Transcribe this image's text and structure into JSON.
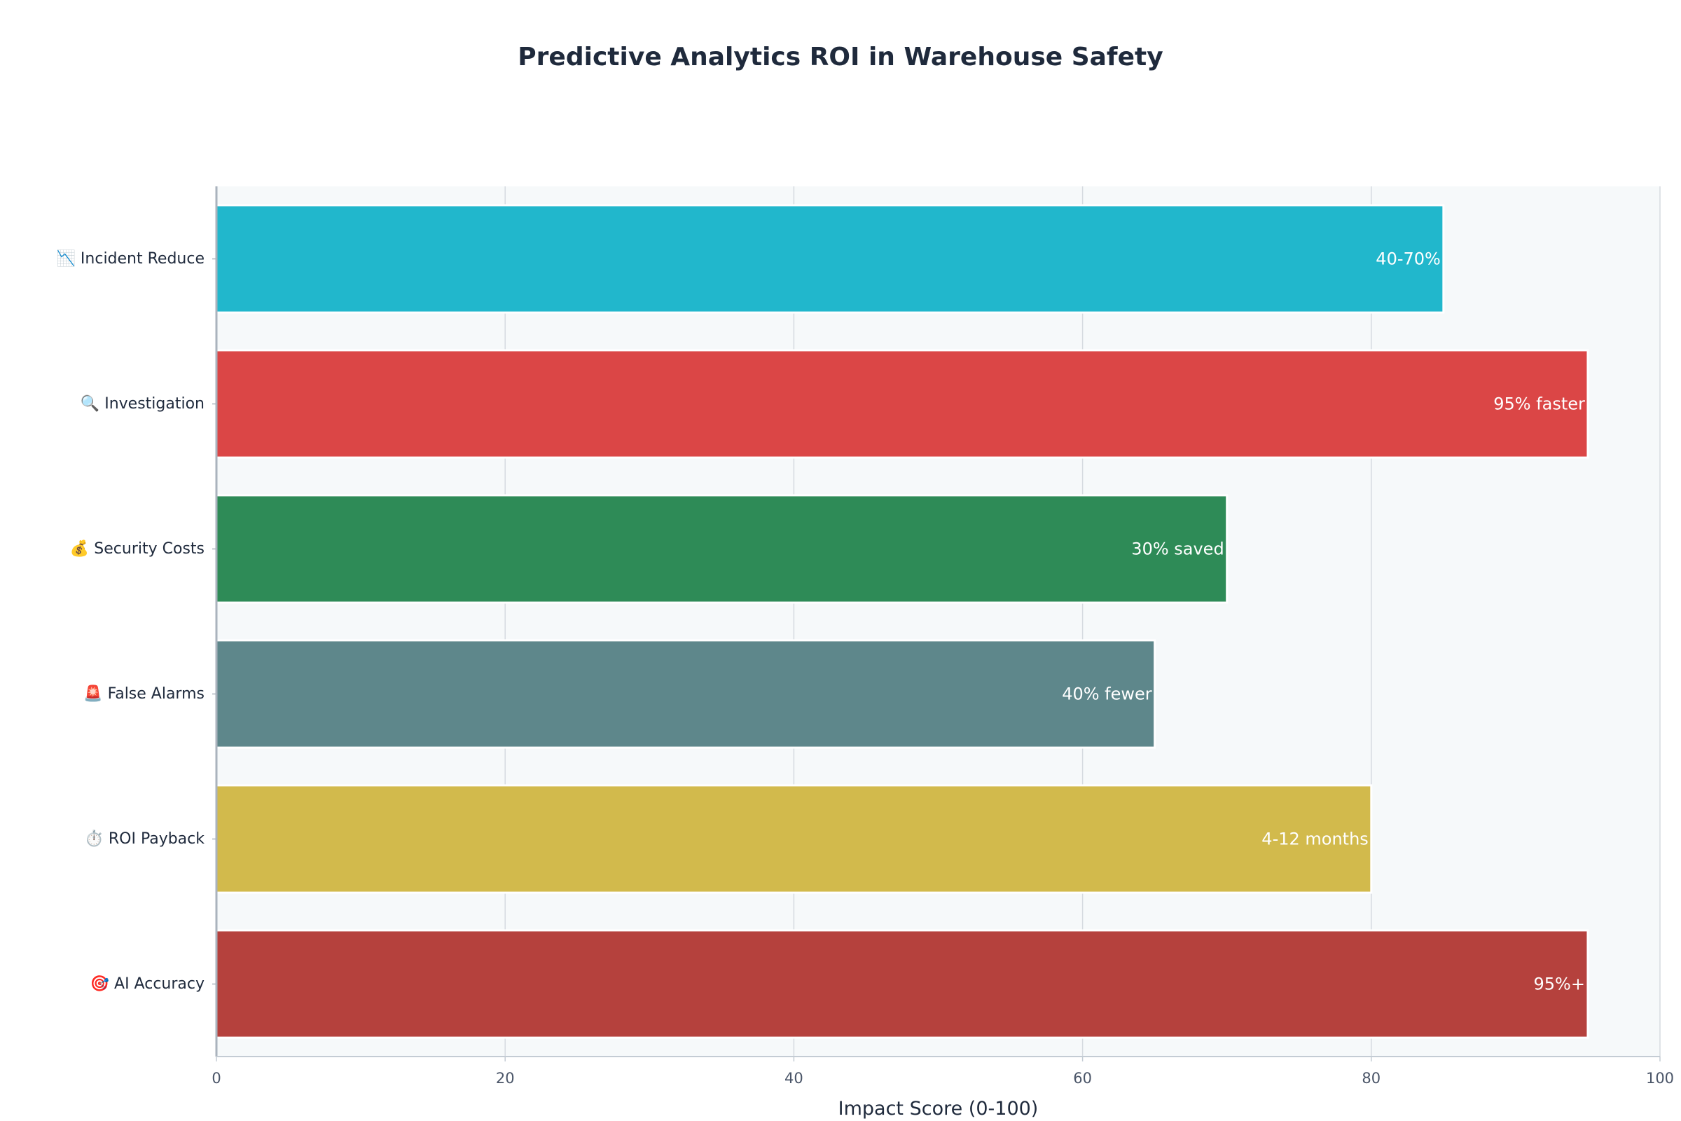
{
  "chart_data": {
    "type": "bar",
    "orientation": "horizontal",
    "title": "Predictive Analytics ROI in Warehouse Safety",
    "xlabel": "Impact Score (0-100)",
    "ylabel": "",
    "xlim": [
      0,
      100
    ],
    "xticks": [
      0,
      20,
      40,
      60,
      80,
      100
    ],
    "grid": true,
    "legend": "none",
    "categories": [
      "📉 Incident Reduce",
      "🔍 Investigation",
      "💰 Security Costs",
      "🚨 False Alarms",
      "⏱️ ROI Payback",
      "🎯 AI Accuracy"
    ],
    "values": [
      85,
      95,
      70,
      65,
      80,
      95
    ],
    "data_labels": [
      "40-70%",
      "95% faster",
      "30% saved",
      "40% fewer",
      "4-12 months",
      "95%+"
    ],
    "colors": [
      "#21b7cc",
      "#db4646",
      "#2e8b57",
      "#5e878b",
      "#d2ba4c",
      "#b5413d"
    ],
    "plot_background": "#f6f9fa"
  }
}
